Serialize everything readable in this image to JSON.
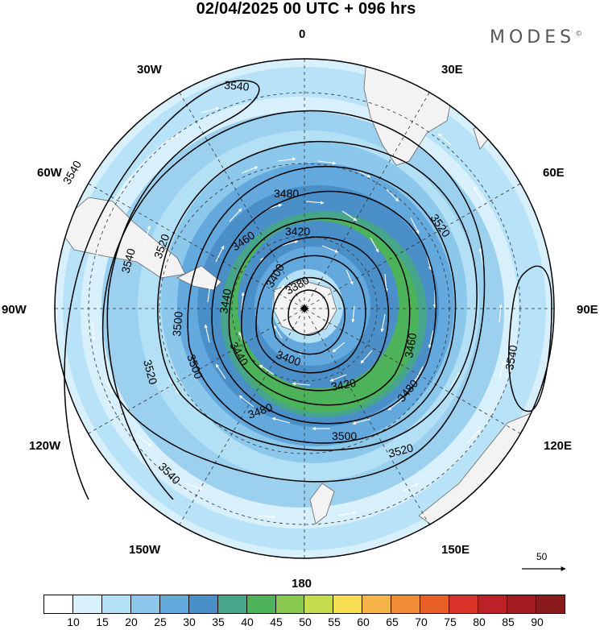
{
  "header": {
    "title": "02/04/2025  00 UTC  + 096 hrs",
    "brand": "MODES",
    "brand_mark": "©"
  },
  "map": {
    "projection": "south-polar-stereographic",
    "lon_labels": {
      "n": "0",
      "ne": "30E",
      "ene": "60E",
      "e": "90E",
      "ese": "120E",
      "se": "150E",
      "s": "180",
      "sw": "150W",
      "wsw": "120W",
      "w": "90W",
      "wnw": "60W",
      "nw": "30W"
    },
    "contour_labels": [
      "3540",
      "3540",
      "3520",
      "3540",
      "3520",
      "3500",
      "3480",
      "3460",
      "3440",
      "3420",
      "3400",
      "3380",
      "3520",
      "3500",
      "3480",
      "3460",
      "3440",
      "3400",
      "3420",
      "3480",
      "3500",
      "3520",
      "3540",
      "3540"
    ],
    "colors": {
      "wind_10": "#ffffff",
      "wind_15": "#d8f0fb",
      "wind_20": "#b4e0f6",
      "wind_25": "#8cc8ec",
      "wind_30": "#64a9dd",
      "wind_35": "#4a8fc8",
      "wind_40": "#46a58a",
      "wind_45": "#4db35b",
      "land": "#f3f3f3",
      "contour": "#000000",
      "arrow": "#ffffff"
    },
    "reference_vector": "50"
  },
  "colorbar": {
    "labels": [
      "10",
      "15",
      "20",
      "25",
      "30",
      "35",
      "40",
      "45",
      "50",
      "55",
      "60",
      "65",
      "70",
      "75",
      "80",
      "85",
      "90"
    ],
    "colors": [
      "#ffffff",
      "#d8f0fb",
      "#b4e0f6",
      "#8cc8ec",
      "#64a9dd",
      "#4a8fc8",
      "#46a58a",
      "#4db35b",
      "#8ac950",
      "#c5dc4e",
      "#f5de51",
      "#f6b449",
      "#f08c33",
      "#e86026",
      "#d93327",
      "#bc2127",
      "#a21b21",
      "#8b1a1a"
    ]
  }
}
